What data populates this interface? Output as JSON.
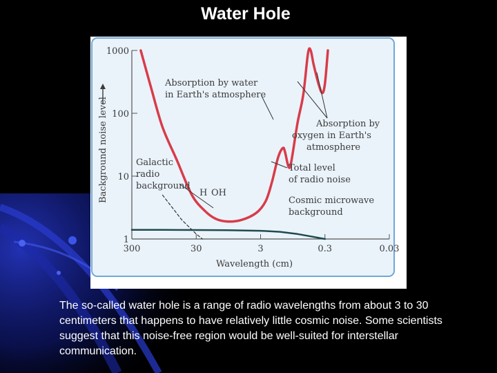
{
  "slide": {
    "title": "Water Hole",
    "caption": "The so-called water hole is a range of radio wavelengths from about 3 to 30 centimeters that happens to have relatively little cosmic noise. Some scientists suggest that this noise-free region would be well-suited for interstellar communication."
  },
  "colors": {
    "background": "#000000",
    "panel_fill": "#eaf3fa",
    "panel_border": "#6fa8d8",
    "total_noise_curve": "#d83c4a",
    "cmb_curve": "#1f4a4e",
    "deco_blue": "#1a2fae"
  },
  "chart_data": {
    "type": "line",
    "x_scale": "log (reversed)",
    "y_scale": "log",
    "xlabel": "Wavelength (cm)",
    "ylabel": "Background noise level",
    "x_ticks": [
      "300",
      "30",
      "3",
      "0.3",
      "0.03"
    ],
    "y_ticks": [
      "1000",
      "100",
      "10",
      "1"
    ],
    "xlim": [
      300,
      0.03
    ],
    "ylim": [
      1,
      1000
    ],
    "grid": false,
    "legend": "none",
    "series": [
      {
        "name": "Total level of radio noise",
        "points": [
          [
            218,
            1000
          ],
          [
            150,
            250
          ],
          [
            100,
            60
          ],
          [
            60,
            18
          ],
          [
            35,
            5
          ],
          [
            22,
            2.8
          ],
          [
            15,
            2.1
          ],
          [
            10,
            1.9
          ],
          [
            6,
            2.0
          ],
          [
            3.5,
            2.6
          ],
          [
            2.5,
            4
          ],
          [
            2.0,
            8
          ],
          [
            1.6,
            20
          ],
          [
            1.35,
            28
          ],
          [
            1.25,
            24
          ],
          [
            1.1,
            14
          ],
          [
            1.0,
            17
          ],
          [
            0.8,
            70
          ],
          [
            0.65,
            200
          ],
          [
            0.55,
            900
          ],
          [
            0.5,
            1000
          ],
          [
            0.45,
            600
          ],
          [
            0.38,
            300
          ],
          [
            0.33,
            210
          ],
          [
            0.3,
            300
          ],
          [
            0.27,
            1000
          ]
        ]
      },
      {
        "name": "Cosmic microwave background",
        "points": [
          [
            300,
            1.4
          ],
          [
            100,
            1.4
          ],
          [
            30,
            1.39
          ],
          [
            10,
            1.38
          ],
          [
            3,
            1.35
          ],
          [
            1.5,
            1.3
          ],
          [
            0.8,
            1.2
          ],
          [
            0.5,
            1.1
          ],
          [
            0.3,
            1.0
          ]
        ]
      },
      {
        "name": "Galactic radio background",
        "points": [
          [
            100,
            5
          ],
          [
            50,
            2
          ],
          [
            30,
            1.2
          ],
          [
            24,
            1
          ]
        ]
      }
    ],
    "annotations": [
      {
        "text": [
          "Absorption by water",
          "in Earth's atmosphere"
        ],
        "target": [
          1.3,
          26
        ]
      },
      {
        "text": [
          "Absorption by",
          "oxygen in Earth's",
          "atmosphere"
        ],
        "targets": [
          [
            0.5,
            400
          ],
          [
            0.33,
            260
          ]
        ]
      },
      {
        "text": [
          "Total level",
          "of radio noise"
        ],
        "target": [
          1.0,
          17
        ]
      },
      {
        "text": [
          "Cosmic microwave",
          "background"
        ],
        "target": [
          0.45,
          1.1
        ]
      },
      {
        "text": [
          "Galactic",
          "radio",
          "background"
        ],
        "target": [
          35,
          1.6
        ]
      },
      {
        "text": [
          "H",
          "OH"
        ],
        "target": [
          20,
          2.8
        ]
      }
    ]
  }
}
